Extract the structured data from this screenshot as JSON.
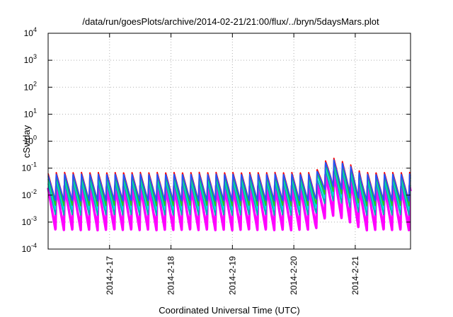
{
  "chart_data": {
    "type": "line",
    "title": "/data/run/goesPlots/archive/2014-02-21/21:00/flux/../bryn/5daysMars.plot",
    "xlabel": "Coordinated Universal Time (UTC)",
    "ylabel": "cSv/day",
    "yscale": "log",
    "ylim": [
      0.0001,
      10000
    ],
    "y_ticks": [
      {
        "base": "10",
        "exp": "4"
      },
      {
        "base": "10",
        "exp": "3"
      },
      {
        "base": "10",
        "exp": "2"
      },
      {
        "base": "10",
        "exp": "1"
      },
      {
        "base": "10",
        "exp": "0"
      },
      {
        "base": "10",
        "exp": "-1"
      },
      {
        "base": "10",
        "exp": "-2"
      },
      {
        "base": "10",
        "exp": "-3"
      },
      {
        "base": "10",
        "exp": "-4"
      }
    ],
    "x_ticks": [
      "2014-2-17",
      "2014-2-18",
      "2014-2-19",
      "2014-2-20",
      "2014-2-21"
    ],
    "xlim_days": [
      -1.0,
      4.9
    ],
    "grid": true,
    "cycles_per_day": 7.3,
    "series": [
      {
        "color": "#ff00ff",
        "peak": 0.022,
        "trough": 0.0005
      },
      {
        "color": "#00b0b0",
        "peak": 0.03,
        "trough": 0.0018
      },
      {
        "color": "#00dddd",
        "peak": 0.045,
        "trough": 0.0028
      },
      {
        "color": "#22cc22",
        "peak": 0.055,
        "trough": 0.004
      },
      {
        "color": "#ff0000",
        "peak": 0.07,
        "trough": 0.006
      },
      {
        "color": "#2255ff",
        "peak": 0.06,
        "trough": 0.006
      }
    ],
    "enhancement": {
      "start_day": 3.35,
      "peak_day": 3.6,
      "end_day": 4.1,
      "factor": 3.6
    },
    "colors": {
      "axes": "#000000",
      "grid": "#b0b0b0",
      "background": "#ffffff"
    }
  }
}
